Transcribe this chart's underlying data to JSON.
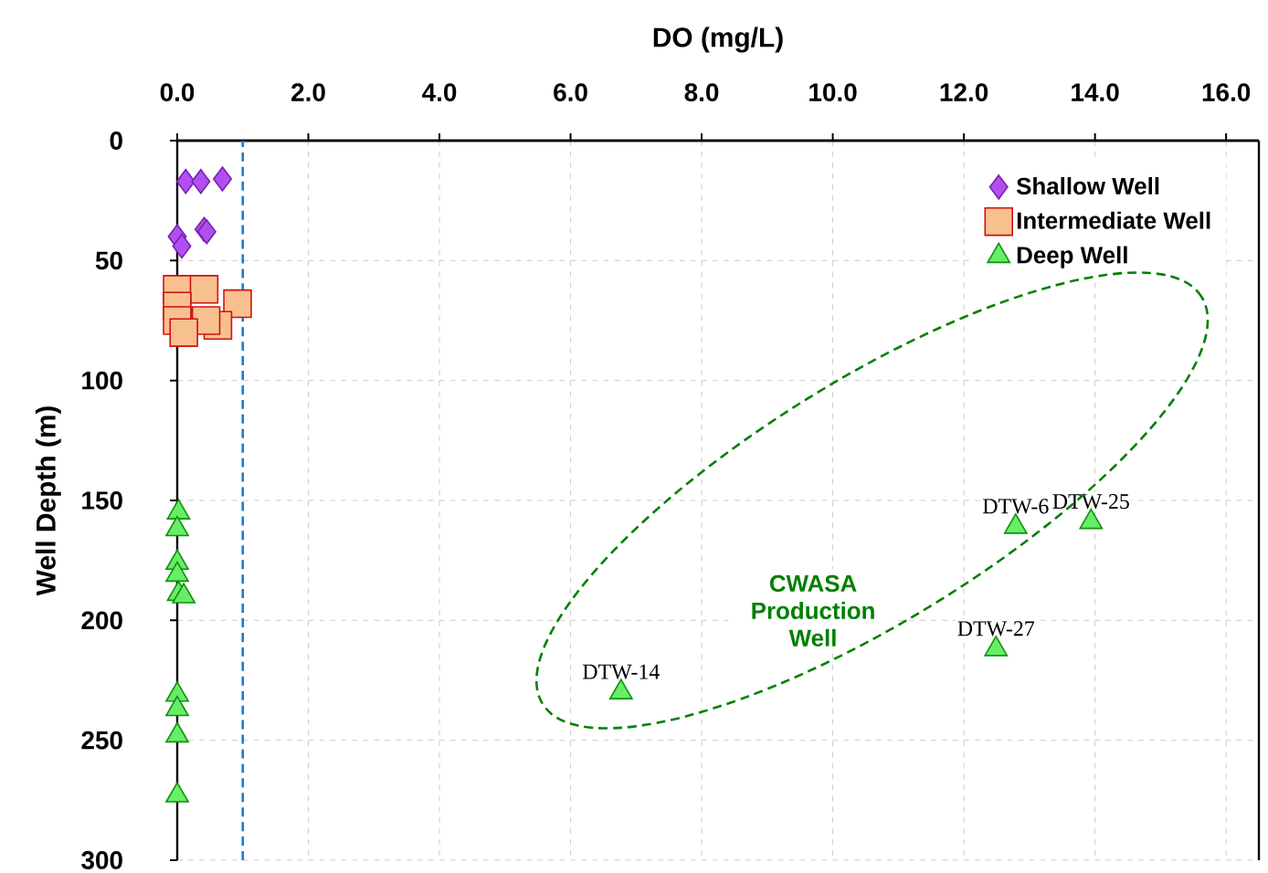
{
  "chart_data": {
    "type": "scatter",
    "xlabel": "DO (mg/L)",
    "ylabel": "Well Depth (m)",
    "xlim": [
      0,
      16.5
    ],
    "ylim": [
      300,
      0
    ],
    "xticks": [
      {
        "value": 0,
        "label": "0.0"
      },
      {
        "value": 2,
        "label": "2.0"
      },
      {
        "value": 4,
        "label": "4.0"
      },
      {
        "value": 6,
        "label": "6.0"
      },
      {
        "value": 8,
        "label": "8.0"
      },
      {
        "value": 10,
        "label": "10.0"
      },
      {
        "value": 12,
        "label": "12.0"
      },
      {
        "value": 14,
        "label": "14.0"
      },
      {
        "value": 16,
        "label": "16.0"
      }
    ],
    "yticks": [
      0,
      50,
      100,
      150,
      200,
      250,
      300
    ],
    "grid": true,
    "legend": "top right",
    "series": [
      {
        "name": "Shallow Well",
        "color": "#b24ff0",
        "marker": "diamond",
        "x": [
          0.13,
          0.36,
          0.69,
          0.41,
          0.45,
          0.0,
          0.07
        ],
        "values": [
          17,
          17,
          16,
          37,
          38,
          40,
          44
        ]
      },
      {
        "name": "Intermediate Well",
        "color": "#f9c08f",
        "marker": "square",
        "x": [
          0.0,
          0.41,
          0.0,
          0.92,
          0.0,
          0.62,
          0.44,
          0.1
        ],
        "values": [
          62,
          62,
          69,
          68,
          75,
          77,
          75,
          80
        ]
      },
      {
        "name": "Deep Well",
        "color": "#66ee66",
        "marker": "triangle",
        "x": [
          0.02,
          0.0,
          0.0,
          0.0,
          0.02,
          0.1,
          0.0,
          0.0,
          0.0,
          0.0,
          6.77,
          12.79,
          13.94,
          12.49
        ],
        "values": [
          155,
          162,
          176,
          181,
          189,
          190,
          231,
          237,
          248,
          273,
          230,
          161,
          159,
          212
        ]
      }
    ],
    "ref_lines": [
      {
        "axis": "x",
        "value": 1,
        "color": "#1f78d0",
        "line_style": "dashed"
      }
    ],
    "annotations": [
      {
        "text": "DTW-14",
        "x": 6.77,
        "y": 230
      },
      {
        "text": "DTW-6",
        "x": 12.79,
        "y": 161
      },
      {
        "text": "DTW-25",
        "x": 13.94,
        "y": 159
      },
      {
        "text": "DTW-27",
        "x": 12.49,
        "y": 212
      },
      "CWASA Production Well"
    ]
  }
}
